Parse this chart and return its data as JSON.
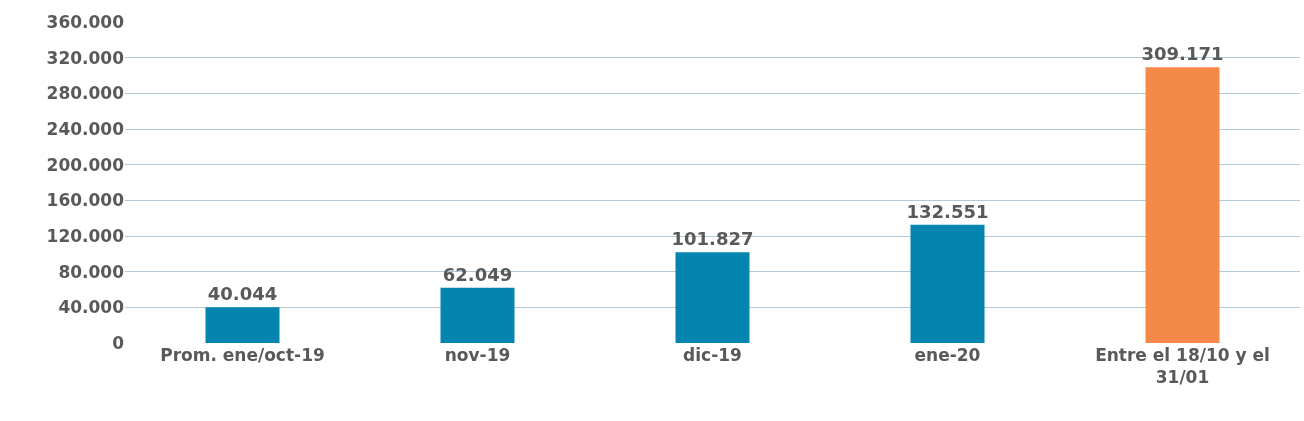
{
  "chart_data": {
    "type": "bar",
    "categories": [
      "Prom. ene/oct-19",
      "nov-19",
      "dic-19",
      "ene-20",
      "Entre el 18/10 y el 31/01"
    ],
    "values": [
      40044,
      62049,
      101827,
      132551,
      309171
    ],
    "colors": [
      "#0385b0",
      "#0385b0",
      "#0385b0",
      "#0385b0",
      "#f5894a"
    ],
    "value_labels": [
      "40.044",
      "62.049",
      "101.827",
      "132.551",
      "309.171"
    ],
    "ylim": [
      0,
      360000
    ],
    "yticks": [
      {
        "value": 0,
        "label": "0"
      },
      {
        "value": 40000,
        "label": "40.000"
      },
      {
        "value": 80000,
        "label": "80.000"
      },
      {
        "value": 120000,
        "label": "120.000"
      },
      {
        "value": 160000,
        "label": "160.000"
      },
      {
        "value": 200000,
        "label": "200.000"
      },
      {
        "value": 240000,
        "label": "240.000"
      },
      {
        "value": 280000,
        "label": "280.000"
      },
      {
        "value": 320000,
        "label": "320.000"
      },
      {
        "value": 360000,
        "label": "360.000"
      }
    ],
    "grid": "y"
  }
}
